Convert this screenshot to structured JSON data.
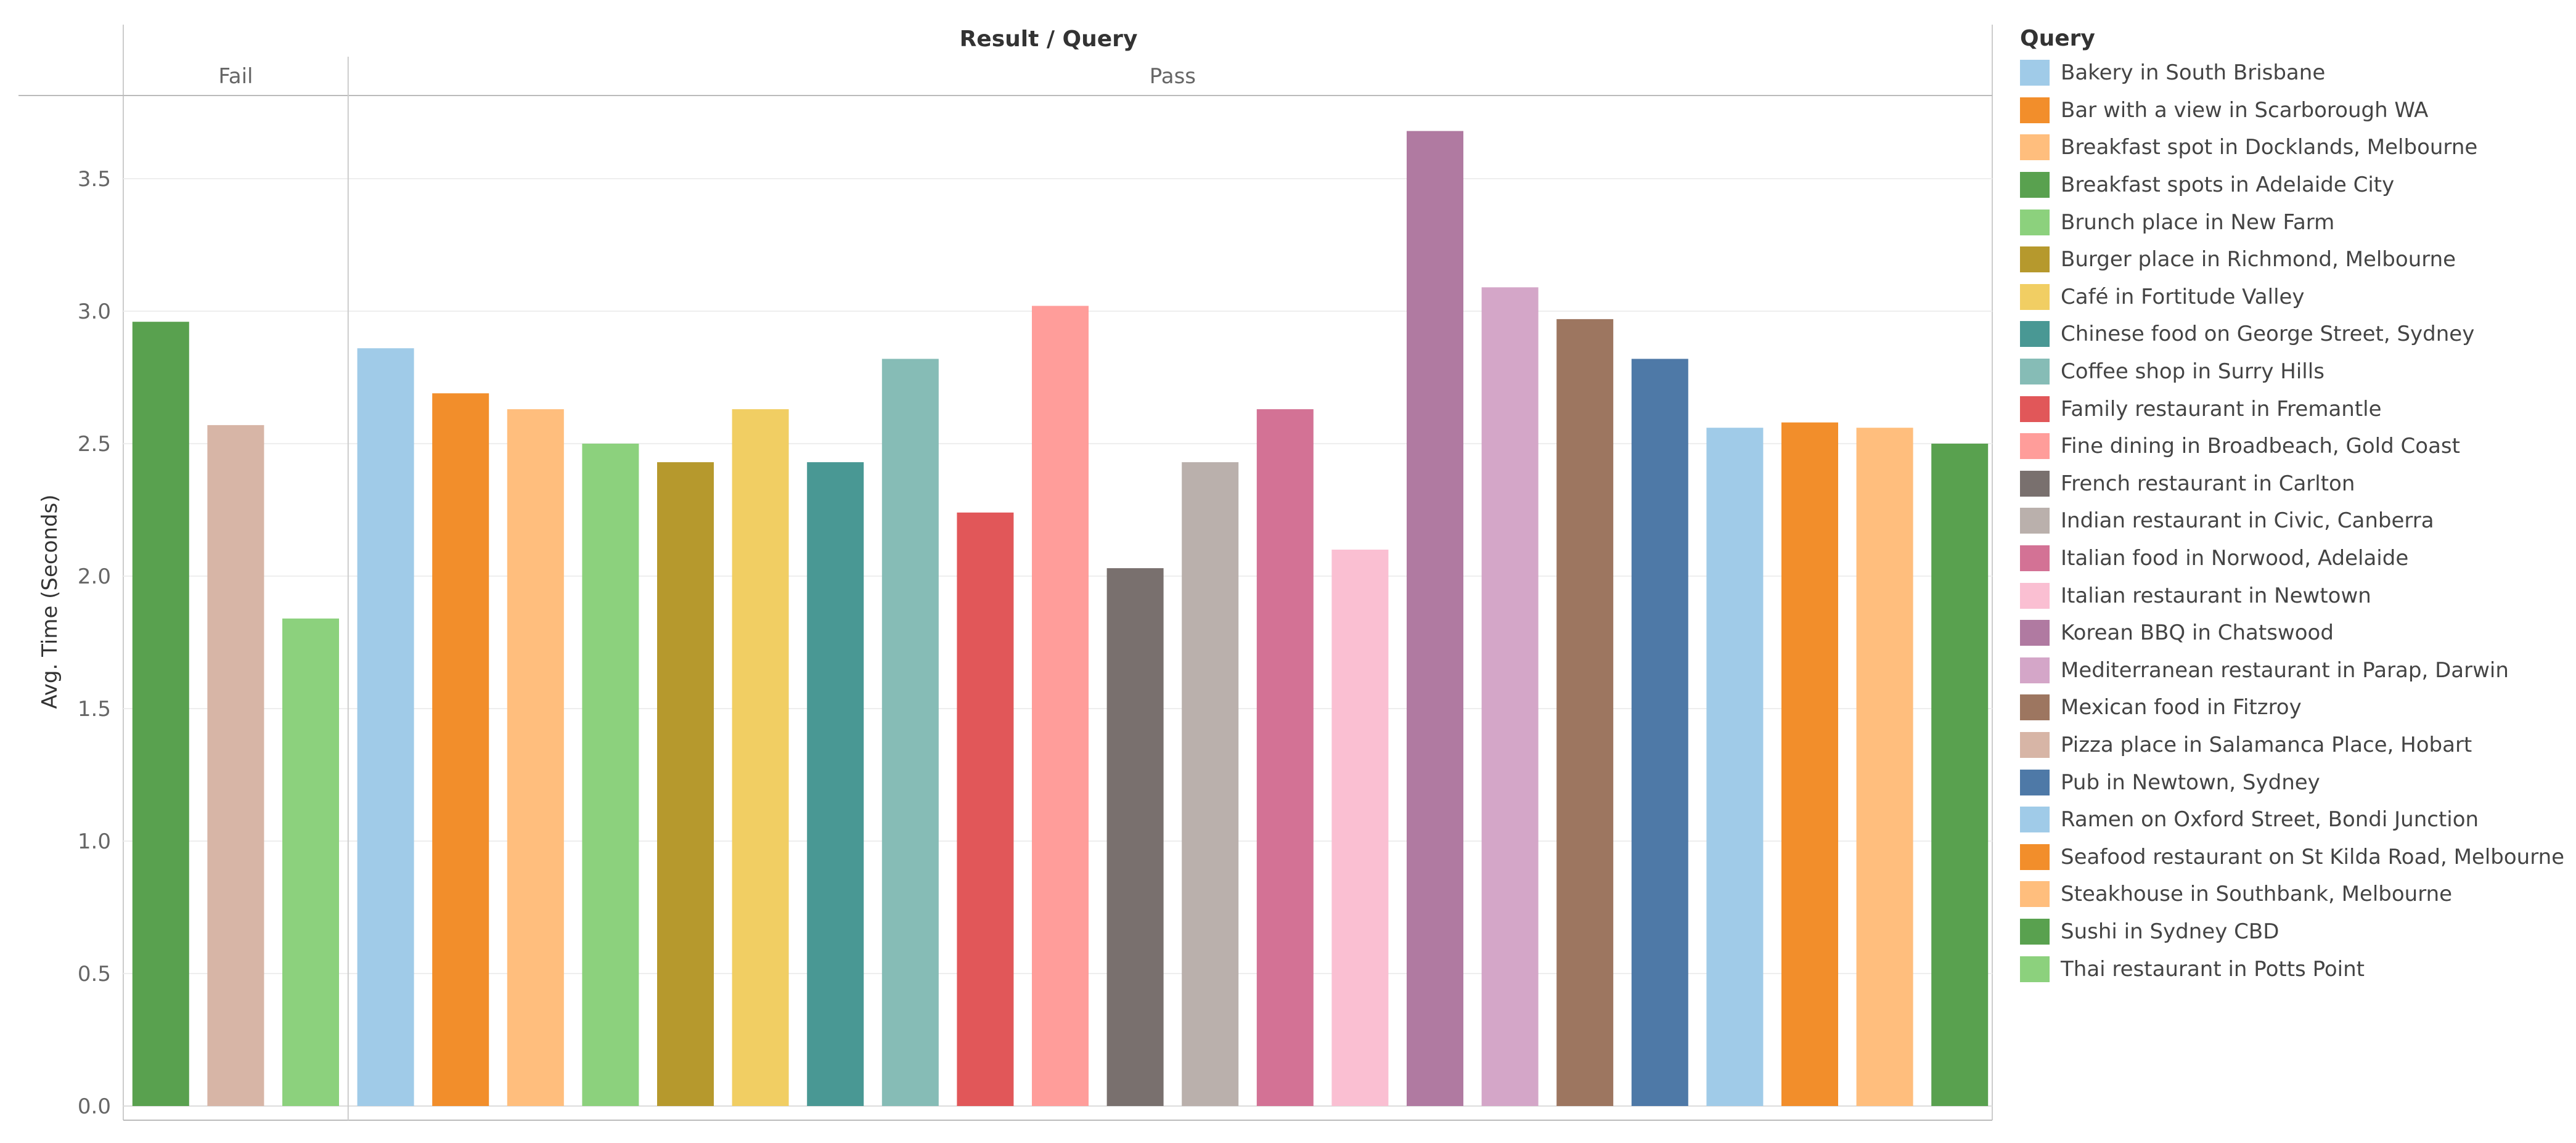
{
  "chart_data": {
    "type": "bar",
    "header": "Result / Query",
    "ylabel": "Avg. Time (Seconds)",
    "ylim": [
      0,
      3.8
    ],
    "yticks": [
      "0.0",
      "0.5",
      "1.0",
      "1.5",
      "2.0",
      "2.5",
      "3.0",
      "3.5"
    ],
    "grid": true,
    "legend_title": "Query",
    "legend_position": "right",
    "legend": [
      {
        "label": "Bakery in South Brisbane",
        "color": "#a0cbe8"
      },
      {
        "label": "Bar with a view in Scarborough WA",
        "color": "#f28e2b"
      },
      {
        "label": "Breakfast spot in Docklands, Melbourne",
        "color": "#ffbe7d"
      },
      {
        "label": "Breakfast spots in Adelaide City",
        "color": "#59a14f"
      },
      {
        "label": "Brunch place in New Farm",
        "color": "#8cd17d"
      },
      {
        "label": "Burger place in Richmond, Melbourne",
        "color": "#b6992d"
      },
      {
        "label": "Café in Fortitude Valley",
        "color": "#f1ce63"
      },
      {
        "label": "Chinese food on George Street, Sydney",
        "color": "#499894"
      },
      {
        "label": "Coffee shop in Surry Hills",
        "color": "#86bcb6"
      },
      {
        "label": "Family restaurant in Fremantle",
        "color": "#e15759"
      },
      {
        "label": "Fine dining in Broadbeach, Gold Coast",
        "color": "#ff9d9a"
      },
      {
        "label": "French restaurant in Carlton",
        "color": "#79706e"
      },
      {
        "label": "Indian restaurant in Civic, Canberra",
        "color": "#bab0ac"
      },
      {
        "label": "Italian food in Norwood, Adelaide",
        "color": "#d37295"
      },
      {
        "label": "Italian restaurant in Newtown",
        "color": "#fabfd2"
      },
      {
        "label": "Korean BBQ in Chatswood",
        "color": "#b07aa1"
      },
      {
        "label": "Mediterranean restaurant in Parap, Darwin",
        "color": "#d4a6c8"
      },
      {
        "label": "Mexican food in Fitzroy",
        "color": "#9d7660"
      },
      {
        "label": "Pizza place in Salamanca Place, Hobart",
        "color": "#d7b5a6"
      },
      {
        "label": "Pub in Newtown, Sydney",
        "color": "#4e79a7"
      },
      {
        "label": "Ramen on Oxford Street, Bondi Junction",
        "color": "#a0cbe8"
      },
      {
        "label": "Seafood restaurant on St Kilda Road, Melbourne",
        "color": "#f28e2b"
      },
      {
        "label": "Steakhouse in Southbank, Melbourne",
        "color": "#ffbe7d"
      },
      {
        "label": "Sushi in Sydney CBD",
        "color": "#59a14f"
      },
      {
        "label": "Thai restaurant in Potts Point",
        "color": "#8cd17d"
      }
    ],
    "groups": [
      {
        "name": "Fail",
        "bars": [
          {
            "query": "Breakfast spots in Adelaide City",
            "value": 2.96
          },
          {
            "query": "Pizza place in Salamanca Place, Hobart",
            "value": 2.57
          },
          {
            "query": "Thai restaurant in Potts Point",
            "value": 1.84
          }
        ]
      },
      {
        "name": "Pass",
        "bars": [
          {
            "query": "Bakery in South Brisbane",
            "value": 2.86
          },
          {
            "query": "Bar with a view in Scarborough WA",
            "value": 2.69
          },
          {
            "query": "Breakfast spot in Docklands, Melbourne",
            "value": 2.63
          },
          {
            "query": "Brunch place in New Farm",
            "value": 2.5
          },
          {
            "query": "Burger place in Richmond, Melbourne",
            "value": 2.43
          },
          {
            "query": "Café in Fortitude Valley",
            "value": 2.63
          },
          {
            "query": "Chinese food on George Street, Sydney",
            "value": 2.43
          },
          {
            "query": "Coffee shop in Surry Hills",
            "value": 2.82
          },
          {
            "query": "Family restaurant in Fremantle",
            "value": 2.24
          },
          {
            "query": "Fine dining in Broadbeach, Gold Coast",
            "value": 3.02
          },
          {
            "query": "French restaurant in Carlton",
            "value": 2.03
          },
          {
            "query": "Indian restaurant in Civic, Canberra",
            "value": 2.43
          },
          {
            "query": "Italian food in Norwood, Adelaide",
            "value": 2.63
          },
          {
            "query": "Italian restaurant in Newtown",
            "value": 2.1
          },
          {
            "query": "Korean BBQ in Chatswood",
            "value": 3.68
          },
          {
            "query": "Mediterranean restaurant in Parap, Darwin",
            "value": 3.09
          },
          {
            "query": "Mexican food in Fitzroy",
            "value": 2.97
          },
          {
            "query": "Pub in Newtown, Sydney",
            "value": 2.82
          },
          {
            "query": "Ramen on Oxford Street, Bondi Junction",
            "value": 2.56
          },
          {
            "query": "Seafood restaurant on St Kilda Road, Melbourne",
            "value": 2.58
          },
          {
            "query": "Steakhouse in Southbank, Melbourne",
            "value": 2.56
          },
          {
            "query": "Sushi in Sydney CBD",
            "value": 2.5
          }
        ]
      }
    ]
  }
}
